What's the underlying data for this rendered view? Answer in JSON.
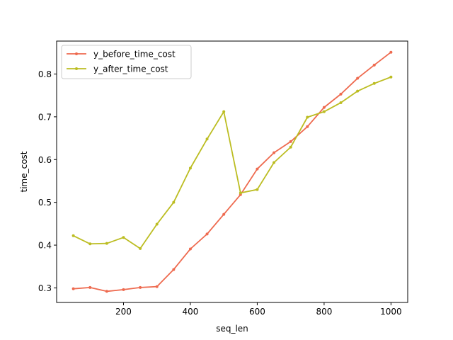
{
  "chart_data": {
    "type": "line",
    "title": "",
    "xlabel": "seq_len",
    "ylabel": "time_cost",
    "xlim": [
      0,
      1050
    ],
    "ylim": [
      0.266,
      0.877
    ],
    "xticks": [
      200,
      400,
      600,
      800,
      1000
    ],
    "yticks": [
      0.3,
      0.4,
      0.5,
      0.6,
      0.7,
      0.8
    ],
    "xtick_labels": [
      "200",
      "400",
      "600",
      "800",
      "1000"
    ],
    "ytick_labels": [
      "0.3",
      "0.4",
      "0.5",
      "0.6",
      "0.7",
      "0.8"
    ],
    "grid": false,
    "legend_position": "top-left",
    "x": [
      50,
      100,
      150,
      200,
      250,
      300,
      350,
      400,
      450,
      500,
      550,
      600,
      650,
      700,
      750,
      800,
      850,
      900,
      950,
      1000
    ],
    "series": [
      {
        "name": "y_before_time_cost",
        "color": "#ee6a4f",
        "values": [
          0.298,
          0.301,
          0.292,
          0.296,
          0.301,
          0.303,
          0.343,
          0.391,
          0.426,
          0.472,
          0.518,
          0.578,
          0.616,
          0.642,
          0.677,
          0.722,
          0.753,
          0.79,
          0.821,
          0.851
        ]
      },
      {
        "name": "y_after_time_cost",
        "color": "#bcbd22",
        "values": [
          0.422,
          0.403,
          0.404,
          0.418,
          0.392,
          0.449,
          0.5,
          0.58,
          0.648,
          0.712,
          0.522,
          0.53,
          0.593,
          0.629,
          0.699,
          0.712,
          0.733,
          0.76,
          0.778,
          0.793
        ]
      }
    ]
  }
}
